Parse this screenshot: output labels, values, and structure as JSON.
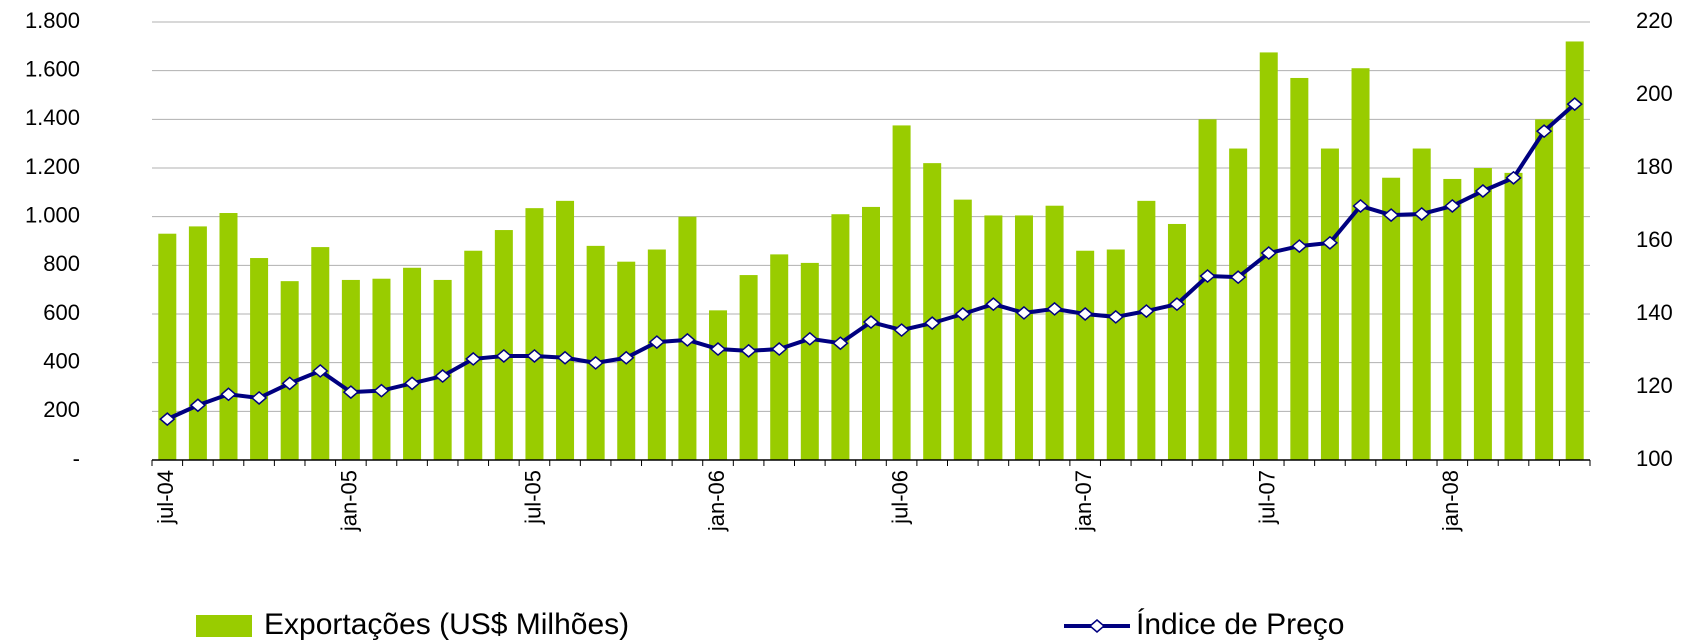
{
  "chart_data": {
    "type": "bar_line",
    "categories": [
      "jul-04",
      null,
      null,
      null,
      null,
      null,
      "jan-05",
      null,
      null,
      null,
      null,
      null,
      "jul-05",
      null,
      null,
      null,
      null,
      null,
      "jan-06",
      null,
      null,
      null,
      null,
      null,
      "jul-06",
      null,
      null,
      null,
      null,
      null,
      "jan-07",
      null,
      null,
      null,
      null,
      null,
      "jul-07",
      null,
      null,
      null,
      null,
      null,
      "jan-08",
      null,
      null,
      null,
      null
    ],
    "series": [
      {
        "name": "Exportações (US$ Milhões)",
        "color": "#99cc00",
        "type": "bar",
        "values": [
          930,
          960,
          1015,
          830,
          735,
          875,
          740,
          745,
          790,
          740,
          860,
          945,
          1035,
          1065,
          880,
          815,
          865,
          1000,
          615,
          760,
          845,
          810,
          1010,
          1040,
          1375,
          1220,
          1070,
          1005,
          1005,
          1045,
          860,
          865,
          1065,
          970,
          1400,
          1280,
          1675,
          1570,
          1280,
          1610,
          1160,
          1280,
          1155,
          1200,
          1180,
          1400,
          1720
        ]
      },
      {
        "name": "Índice de Preço",
        "color": "#000080",
        "type": "line",
        "axis": "y2",
        "values": [
          111.2,
          115,
          118,
          117,
          121,
          124.4,
          118.6,
          119,
          121,
          123,
          127.7,
          128.5,
          128.5,
          128,
          126.6,
          128,
          132.3,
          132.9,
          130.4,
          129.9,
          130.4,
          133.2,
          132,
          137.8,
          135.6,
          137.5,
          140,
          142.7,
          140.3,
          141.4,
          140,
          139.2,
          140.8,
          142.7,
          150.4,
          150.1,
          156.7,
          158.6,
          159.5,
          169.6,
          167.1,
          167.4,
          169.6,
          173.7,
          177.3,
          190.1,
          197.5
        ]
      }
    ],
    "ylim": [
      0,
      1800
    ],
    "yticks": [
      {
        "value": 0,
        "label": "-"
      },
      200,
      400,
      600,
      800,
      {
        "value": 1000,
        "label": "1.000"
      },
      {
        "value": 1200,
        "label": "1.200"
      },
      {
        "value": 1400,
        "label": "1.400"
      },
      {
        "value": 1600,
        "label": "1.600"
      },
      {
        "value": 1800,
        "label": "1.800"
      }
    ],
    "y2lim": [
      100,
      220
    ],
    "y2ticks": [
      100,
      120,
      140,
      160,
      180,
      200,
      220
    ],
    "grid": true,
    "legend": "bottom"
  }
}
